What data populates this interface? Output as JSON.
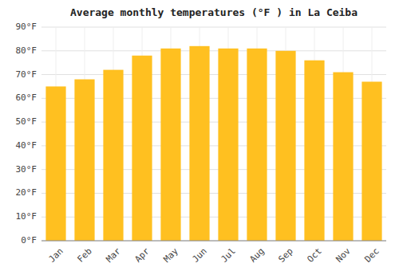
{
  "chart_data": {
    "type": "bar",
    "title": "Average monthly temperatures (°F ) in La Ceiba",
    "categories": [
      "Jan",
      "Feb",
      "Mar",
      "Apr",
      "May",
      "Jun",
      "Jul",
      "Aug",
      "Sep",
      "Oct",
      "Nov",
      "Dec"
    ],
    "values": [
      65,
      68,
      72,
      78,
      81,
      82,
      81,
      81,
      80,
      76,
      71,
      67
    ],
    "color": "#FFC020",
    "ylim": [
      0,
      90
    ],
    "yticks": [
      {
        "value": 0,
        "label": "0°F"
      },
      {
        "value": 10,
        "label": "10°F"
      },
      {
        "value": 20,
        "label": "20°F"
      },
      {
        "value": 30,
        "label": "30°F"
      },
      {
        "value": 40,
        "label": "40°F"
      },
      {
        "value": 50,
        "label": "50°F"
      },
      {
        "value": 60,
        "label": "60°F"
      },
      {
        "value": 70,
        "label": "70°F"
      },
      {
        "value": 80,
        "label": "80°F"
      },
      {
        "value": 90,
        "label": "90°F"
      }
    ],
    "grid": true
  }
}
